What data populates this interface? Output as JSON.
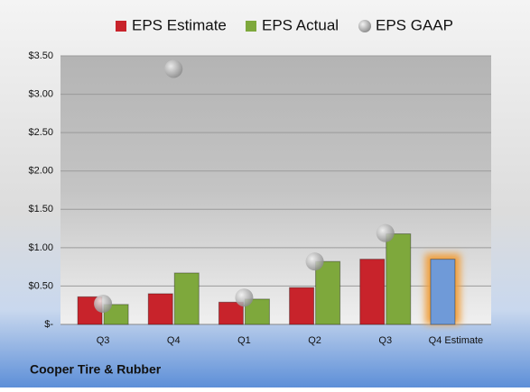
{
  "chart_data": {
    "type": "bar",
    "categories": [
      "Q3",
      "Q4",
      "Q1",
      "Q2",
      "Q3",
      "Q4 Estimate"
    ],
    "series": [
      {
        "name": "EPS Estimate",
        "color": "#c8232b",
        "point_colors": [
          "#c8232b",
          "#c8232b",
          "#c8232b",
          "#c8232b",
          "#c8232b",
          "#6f9ad8"
        ],
        "values": [
          0.36,
          0.4,
          0.29,
          0.48,
          0.85,
          0.85
        ]
      },
      {
        "name": "EPS Actual",
        "color": "#7ea83c",
        "values": [
          0.26,
          0.67,
          0.33,
          0.82,
          1.18,
          null
        ]
      },
      {
        "name": "EPS GAAP",
        "color": "#a8a8a8",
        "marker": "circle",
        "values": [
          0.27,
          3.33,
          0.35,
          0.82,
          1.19,
          null
        ]
      }
    ],
    "ylim": [
      0,
      3.5
    ],
    "yticks": [
      {
        "value": 0,
        "label": "$-"
      },
      {
        "value": 0.5,
        "label": "$0.50"
      },
      {
        "value": 1,
        "label": "$1.00"
      },
      {
        "value": 1.5,
        "label": "$1.50"
      },
      {
        "value": 2,
        "label": "$2.00"
      },
      {
        "value": 2.5,
        "label": "$2.50"
      },
      {
        "value": 3,
        "label": "$3.00"
      },
      {
        "value": 3.5,
        "label": "$3.50"
      }
    ],
    "grid": true,
    "legend": "top",
    "footer": "Cooper Tire & Rubber"
  }
}
